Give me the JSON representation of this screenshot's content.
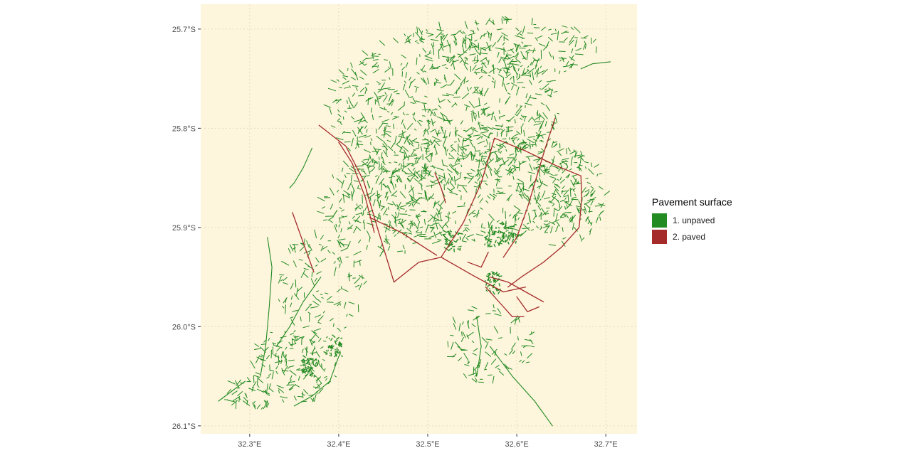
{
  "chart_data": {
    "type": "map",
    "x_axis": {
      "ticks": [
        {
          "value": 32.3,
          "label": "32.3°E"
        },
        {
          "value": 32.4,
          "label": "32.4°E"
        },
        {
          "value": 32.5,
          "label": "32.5°E"
        },
        {
          "value": 32.6,
          "label": "32.6°E"
        },
        {
          "value": 32.7,
          "label": "32.7°E"
        }
      ],
      "range": [
        32.245,
        32.735
      ]
    },
    "y_axis": {
      "ticks": [
        {
          "value": -25.7,
          "label": "25.7°S"
        },
        {
          "value": -25.8,
          "label": "25.8°S"
        },
        {
          "value": -25.9,
          "label": "25.9°S"
        },
        {
          "value": -26.0,
          "label": "26.0°S"
        },
        {
          "value": -26.1,
          "label": "26.1°S"
        }
      ],
      "range": [
        -26.108,
        -25.675
      ]
    },
    "grid": true,
    "panel_background": "#fdf5dc",
    "legend": {
      "title": "Pavement surface",
      "placement": "right",
      "items": [
        {
          "label": "1. unpaved",
          "color": "#228b22"
        },
        {
          "label": "2. paved",
          "color": "#a52a2a"
        }
      ]
    },
    "paved_roads": [
      [
        [
          32.378,
          -25.797
        ],
        [
          32.408,
          -25.818
        ],
        [
          32.428,
          -25.853
        ],
        [
          32.445,
          -25.905
        ],
        [
          32.462,
          -25.955
        ]
      ],
      [
        [
          32.4,
          -25.814
        ],
        [
          32.415,
          -25.835
        ],
        [
          32.43,
          -25.87
        ],
        [
          32.44,
          -25.905
        ]
      ],
      [
        [
          32.462,
          -25.955
        ],
        [
          32.49,
          -25.935
        ],
        [
          32.515,
          -25.93
        ],
        [
          32.55,
          -25.948
        ],
        [
          32.585,
          -25.965
        ],
        [
          32.61,
          -25.96
        ]
      ],
      [
        [
          32.435,
          -25.89
        ],
        [
          32.47,
          -25.905
        ],
        [
          32.51,
          -25.928
        ]
      ],
      [
        [
          32.515,
          -25.93
        ],
        [
          32.54,
          -25.895
        ],
        [
          32.56,
          -25.855
        ],
        [
          32.575,
          -25.81
        ]
      ],
      [
        [
          32.575,
          -25.81
        ],
        [
          32.61,
          -25.823
        ],
        [
          32.645,
          -25.838
        ],
        [
          32.672,
          -25.848
        ]
      ],
      [
        [
          32.672,
          -25.848
        ],
        [
          32.673,
          -25.87
        ],
        [
          32.67,
          -25.9
        ],
        [
          32.65,
          -25.92
        ],
        [
          32.63,
          -25.935
        ]
      ],
      [
        [
          32.63,
          -25.935
        ],
        [
          32.605,
          -25.95
        ],
        [
          32.59,
          -25.96
        ]
      ],
      [
        [
          32.643,
          -25.79
        ],
        [
          32.632,
          -25.82
        ],
        [
          32.622,
          -25.85
        ],
        [
          32.612,
          -25.88
        ],
        [
          32.6,
          -25.91
        ],
        [
          32.585,
          -25.93
        ]
      ],
      [
        [
          32.57,
          -25.95
        ],
        [
          32.59,
          -25.955
        ],
        [
          32.61,
          -25.965
        ],
        [
          32.63,
          -25.975
        ]
      ],
      [
        [
          32.565,
          -25.96
        ],
        [
          32.58,
          -25.975
        ],
        [
          32.595,
          -25.99
        ],
        [
          32.608,
          -25.99
        ]
      ],
      [
        [
          32.348,
          -25.885
        ],
        [
          32.36,
          -25.915
        ],
        [
          32.372,
          -25.945
        ]
      ],
      [
        [
          32.6,
          -25.97
        ],
        [
          32.612,
          -25.985
        ],
        [
          32.625,
          -25.98
        ]
      ],
      [
        [
          32.545,
          -25.935
        ],
        [
          32.56,
          -25.94
        ],
        [
          32.568,
          -25.925
        ]
      ],
      [
        [
          32.508,
          -25.845
        ],
        [
          32.515,
          -25.86
        ],
        [
          32.52,
          -25.875
        ]
      ]
    ],
    "unpaved_roads": [
      [
        [
          32.705,
          -25.733
        ],
        [
          32.685,
          -25.735
        ],
        [
          32.672,
          -25.74
        ]
      ],
      [
        [
          32.345,
          -25.86
        ],
        [
          32.35,
          -25.855
        ],
        [
          32.36,
          -25.84
        ],
        [
          32.37,
          -25.82
        ]
      ],
      [
        [
          32.32,
          -25.91
        ],
        [
          32.325,
          -25.94
        ],
        [
          32.322,
          -25.98
        ],
        [
          32.318,
          -26.02
        ],
        [
          32.312,
          -26.05
        ]
      ],
      [
        [
          32.38,
          -25.95
        ],
        [
          32.36,
          -25.975
        ],
        [
          32.345,
          -26.0
        ],
        [
          32.33,
          -26.02
        ]
      ],
      [
        [
          32.4,
          -26.03
        ],
        [
          32.39,
          -26.055
        ],
        [
          32.37,
          -26.07
        ],
        [
          32.35,
          -26.08
        ]
      ],
      [
        [
          32.57,
          -26.02
        ],
        [
          32.595,
          -26.05
        ],
        [
          32.62,
          -26.075
        ],
        [
          32.64,
          -26.1
        ]
      ],
      [
        [
          32.555,
          -25.99
        ],
        [
          32.56,
          -26.02
        ],
        [
          32.555,
          -26.05
        ]
      ],
      [
        [
          32.265,
          -26.075
        ],
        [
          32.28,
          -26.065
        ],
        [
          32.295,
          -26.055
        ]
      ]
    ]
  }
}
